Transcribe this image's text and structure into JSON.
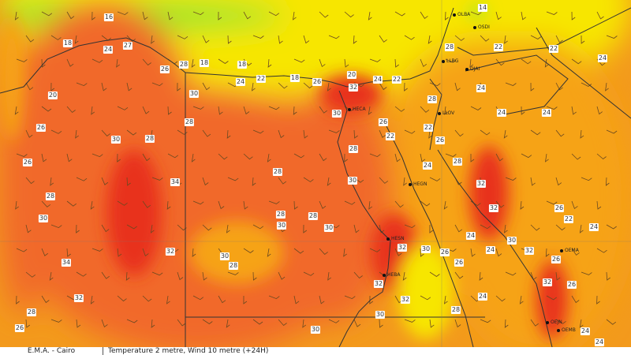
{
  "footer": {
    "source": "E.M.A. - Cairo",
    "product": "Temperature 2 metre, Wind 10 metre (+24H)"
  },
  "colors": {
    "cool_green": "#9be52a",
    "mild_yellow": "#f7e600",
    "warm_orange": "#f6a312",
    "hot_orange": "#f1692a",
    "very_hot_red": "#e8321c"
  },
  "temperature_labels": [
    "16",
    "27",
    "24",
    "18",
    "26",
    "28",
    "18",
    "18",
    "24",
    "22",
    "18",
    "26",
    "20",
    "32",
    "24",
    "22",
    "14",
    "28",
    "22",
    "22",
    "24",
    "20",
    "26",
    "30",
    "28",
    "30",
    "28",
    "30",
    "26",
    "22",
    "22",
    "26",
    "28",
    "24",
    "24",
    "24",
    "26",
    "28",
    "30",
    "34",
    "32",
    "32",
    "34",
    "28",
    "28",
    "30",
    "28",
    "28",
    "30",
    "30",
    "30",
    "28",
    "24",
    "28",
    "32",
    "32",
    "26",
    "22",
    "24",
    "24",
    "30",
    "32",
    "24",
    "30",
    "26",
    "26",
    "32",
    "32",
    "32",
    "28",
    "24",
    "32",
    "26",
    "26",
    "24",
    "24",
    "30",
    "30",
    "28",
    "26"
  ],
  "stations": [
    "OLBA",
    "OSDI",
    "LLBG",
    "OJAI",
    "HECA",
    "LLOV",
    "HEGN",
    "HESN",
    "HEBA",
    "OEMA",
    "OEJN",
    "OEMB"
  ]
}
